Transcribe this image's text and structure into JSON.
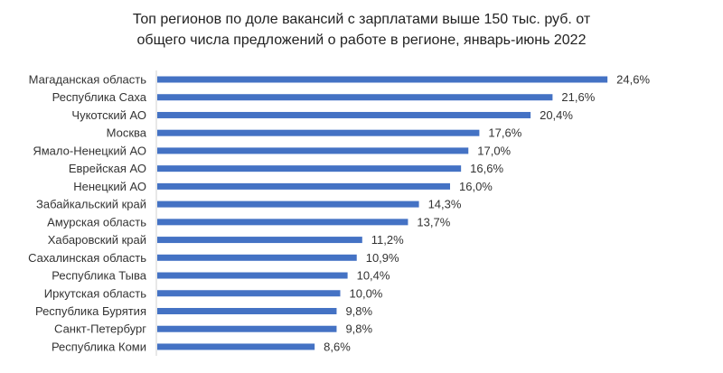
{
  "chart_data": {
    "type": "bar",
    "orientation": "horizontal",
    "title_lines": [
      "Топ регионов по доле вакансий с зарплатами выше 150 тыс. руб. от",
      "общего числа предложений о работе в регионе, январь-июнь 2022"
    ],
    "categories": [
      "Магаданская область",
      "Республика Саха",
      "Чукотский АО",
      "Москва",
      "Ямало-Ненецкий АО",
      "Еврейская АО",
      "Ненецкий АО",
      "Забайкальский край",
      "Амурская область",
      "Хабаровский край",
      "Сахалинская область",
      "Республика Тыва",
      "Иркутская область",
      "Республика Бурятия",
      "Санкт-Петербург",
      "Республика Коми"
    ],
    "values": [
      24.6,
      21.6,
      20.4,
      17.6,
      17.0,
      16.6,
      16.0,
      14.3,
      13.7,
      11.2,
      10.9,
      10.4,
      10.0,
      9.8,
      9.8,
      8.6
    ],
    "value_labels": [
      "24,6%",
      "21,6%",
      "20,4%",
      "17,6%",
      "17,0%",
      "16,6%",
      "16,0%",
      "14,3%",
      "13,7%",
      "11,2%",
      "10,9%",
      "10,4%",
      "10,0%",
      "9,8%",
      "9,8%",
      "8,6%"
    ],
    "xlabel": "",
    "ylabel": "",
    "xlim": [
      0,
      25
    ],
    "grid": false,
    "legend": "none",
    "bar_color": "#4472C4"
  }
}
